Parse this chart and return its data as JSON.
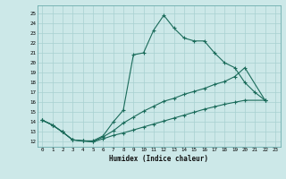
{
  "xlabel": "Humidex (Indice chaleur)",
  "bg_color": "#cce8e8",
  "grid_color": "#a8d0d0",
  "line_color": "#1a6b5a",
  "xlim": [
    -0.5,
    23.5
  ],
  "ylim": [
    11.5,
    25.8
  ],
  "xticks": [
    0,
    1,
    2,
    3,
    4,
    5,
    6,
    7,
    8,
    9,
    10,
    11,
    12,
    13,
    14,
    15,
    16,
    17,
    18,
    19,
    20,
    21,
    22,
    23
  ],
  "yticks": [
    12,
    13,
    14,
    15,
    16,
    17,
    18,
    19,
    20,
    21,
    22,
    23,
    24,
    25
  ],
  "curve1_x": [
    0,
    1,
    2,
    3,
    4,
    5,
    6,
    7,
    8,
    9,
    10,
    11,
    12,
    13,
    14,
    15,
    16,
    17,
    18,
    19,
    20,
    21,
    22
  ],
  "curve1_y": [
    14.2,
    13.7,
    13.0,
    12.2,
    12.1,
    12.1,
    12.6,
    14.0,
    15.2,
    20.8,
    21.0,
    23.3,
    24.8,
    23.5,
    22.5,
    22.2,
    22.2,
    21.0,
    20.0,
    19.5,
    18.0,
    17.0,
    16.2
  ],
  "curve2_x": [
    0,
    1,
    2,
    3,
    4,
    5,
    6,
    7,
    8,
    9,
    10,
    11,
    12,
    13,
    14,
    15,
    16,
    17,
    18,
    19,
    20,
    22
  ],
  "curve2_y": [
    14.2,
    13.7,
    13.0,
    12.2,
    12.1,
    12.0,
    12.3,
    12.65,
    12.9,
    13.2,
    13.5,
    13.8,
    14.1,
    14.4,
    14.7,
    15.0,
    15.3,
    15.55,
    15.8,
    16.0,
    16.2,
    16.2
  ],
  "curve3_x": [
    0,
    1,
    2,
    3,
    4,
    5,
    6,
    7,
    8,
    9,
    10,
    11,
    12,
    13,
    14,
    15,
    16,
    17,
    18,
    19,
    20,
    22
  ],
  "curve3_y": [
    14.2,
    13.7,
    13.0,
    12.2,
    12.1,
    12.0,
    12.5,
    13.1,
    13.9,
    14.5,
    15.1,
    15.6,
    16.1,
    16.4,
    16.8,
    17.1,
    17.4,
    17.8,
    18.1,
    18.6,
    19.5,
    16.2
  ]
}
